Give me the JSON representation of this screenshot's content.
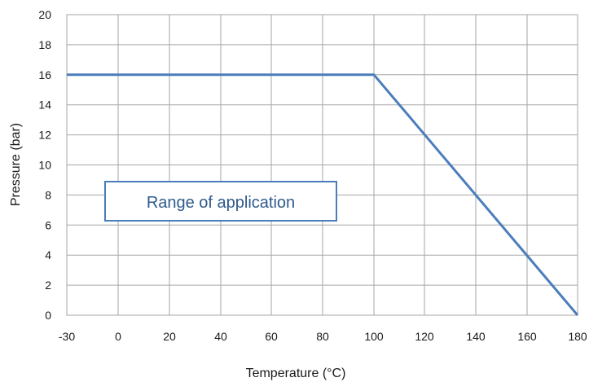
{
  "chart_data": {
    "type": "line",
    "title": "",
    "xlabel": "Temperature (°C)",
    "ylabel": "Pressure (bar)",
    "xlim": [
      -30,
      180
    ],
    "ylim": [
      0,
      20
    ],
    "x_tick_labels": [
      "-30",
      "0",
      "20",
      "40",
      "60",
      "80",
      "100",
      "120",
      "140",
      "160",
      "180"
    ],
    "y_tick_labels": [
      "0",
      "2",
      "4",
      "6",
      "8",
      "10",
      "12",
      "14",
      "16",
      "18",
      "20"
    ],
    "grid": true,
    "legend": "none",
    "series": [
      {
        "color": "#4a7ebb",
        "x": [
          -30,
          100,
          180
        ],
        "y": [
          16,
          16,
          0
        ]
      }
    ],
    "annotations": [
      {
        "text": "Range of application"
      }
    ]
  }
}
